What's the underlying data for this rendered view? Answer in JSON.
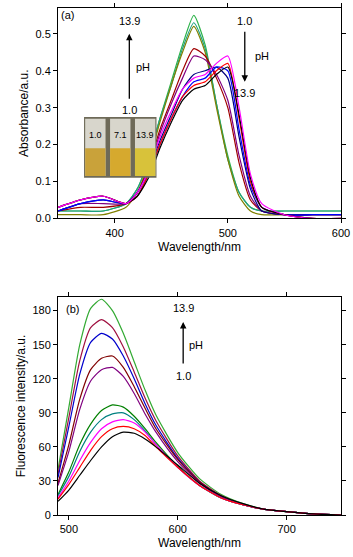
{
  "chart_data": [
    {
      "type": "line",
      "x_label": "Wavelength/nm",
      "y_label": "Absorbance/a.u.",
      "x": [
        350,
        370,
        390,
        410,
        420,
        430,
        440,
        450,
        460,
        470,
        480,
        490,
        500,
        510,
        520,
        530,
        550,
        575,
        600
      ],
      "xlim": [
        350,
        600
      ],
      "xticks": [
        400,
        500,
        600
      ],
      "ylim": [
        0,
        0.57
      ],
      "yticks": [
        {
          "value": 0,
          "label": "0.0"
        },
        0.1,
        0.2,
        0.3,
        0.4,
        0.5
      ],
      "inset_labels": [
        "1.0",
        "7.1",
        "13.9"
      ],
      "annotations": [
        {
          "text": "(a)",
          "x": 358,
          "y": 0.55
        },
        {
          "text": "13.9",
          "x": 413,
          "y": 0.535
        },
        {
          "text": "pH",
          "x": 425,
          "y": 0.41
        },
        {
          "text": "1.0",
          "x": 413,
          "y": 0.295
        },
        {
          "text": "1.0",
          "x": 515,
          "y": 0.535
        },
        {
          "text": "pH",
          "x": 530,
          "y": 0.44
        },
        {
          "text": "13.9",
          "x": 515,
          "y": 0.34
        }
      ],
      "series": [
        {
          "color": "#2db34a",
          "values": [
            0.02,
            0.02,
            0.02,
            0.04,
            0.08,
            0.16,
            0.27,
            0.37,
            0.47,
            0.55,
            0.47,
            0.31,
            0.17,
            0.07,
            0.03,
            0.02,
            0.02,
            0.02,
            0.02
          ]
        },
        {
          "color": "#20a080",
          "values": [
            0.02,
            0.02,
            0.02,
            0.04,
            0.08,
            0.16,
            0.27,
            0.36,
            0.46,
            0.53,
            0.46,
            0.31,
            0.16,
            0.07,
            0.03,
            0.02,
            0.02,
            0.02,
            0.02
          ]
        },
        {
          "color": "#808000",
          "values": [
            0.01,
            0.01,
            0.01,
            0.03,
            0.07,
            0.15,
            0.26,
            0.36,
            0.45,
            0.52,
            0.45,
            0.3,
            0.16,
            0.06,
            0.02,
            0.01,
            0.01,
            0.01,
            0.01
          ]
        },
        {
          "color": "#a00000",
          "values": [
            0.02,
            0.03,
            0.03,
            0.04,
            0.07,
            0.14,
            0.24,
            0.32,
            0.4,
            0.46,
            0.44,
            0.38,
            0.3,
            0.15,
            0.05,
            0.02,
            0.01,
            0.01,
            0.01
          ]
        },
        {
          "color": "#800080",
          "values": [
            0.02,
            0.04,
            0.04,
            0.04,
            0.07,
            0.13,
            0.23,
            0.31,
            0.38,
            0.44,
            0.43,
            0.39,
            0.32,
            0.17,
            0.06,
            0.02,
            0.01,
            0.01,
            0.01
          ]
        },
        {
          "color": "#000080",
          "values": [
            0.02,
            0.04,
            0.05,
            0.04,
            0.07,
            0.13,
            0.21,
            0.28,
            0.35,
            0.39,
            0.4,
            0.41,
            0.38,
            0.22,
            0.08,
            0.02,
            0.01,
            0.01,
            0.01
          ]
        },
        {
          "color": "#0000ff",
          "values": [
            0.02,
            0.04,
            0.05,
            0.04,
            0.06,
            0.12,
            0.2,
            0.27,
            0.33,
            0.37,
            0.38,
            0.41,
            0.4,
            0.24,
            0.09,
            0.03,
            0.01,
            0.01,
            0.01
          ]
        },
        {
          "color": "#ff0000",
          "values": [
            0.03,
            0.05,
            0.06,
            0.04,
            0.06,
            0.12,
            0.2,
            0.27,
            0.33,
            0.36,
            0.37,
            0.4,
            0.42,
            0.27,
            0.1,
            0.03,
            0.01,
            0.0,
            0.0
          ]
        },
        {
          "color": "#000000",
          "values": [
            0.03,
            0.05,
            0.06,
            0.04,
            0.06,
            0.11,
            0.19,
            0.26,
            0.32,
            0.35,
            0.36,
            0.39,
            0.41,
            0.28,
            0.11,
            0.03,
            0.01,
            0.0,
            0.0
          ]
        },
        {
          "color": "#ff00ff",
          "values": [
            0.03,
            0.05,
            0.06,
            0.04,
            0.07,
            0.13,
            0.22,
            0.29,
            0.35,
            0.38,
            0.39,
            0.42,
            0.44,
            0.3,
            0.12,
            0.04,
            0.01,
            0.0,
            0.0
          ]
        }
      ]
    },
    {
      "type": "line",
      "x_label": "Wavelength/nm",
      "y_label": "Fluorescence intensity/a.u.",
      "x": [
        490,
        500,
        510,
        520,
        530,
        540,
        550,
        560,
        570,
        580,
        600,
        620,
        640,
        660,
        680,
        700,
        725,
        750
      ],
      "xlim": [
        490,
        750
      ],
      "xticks": [
        500,
        600,
        700
      ],
      "ylim": [
        0,
        192
      ],
      "yticks": [
        0,
        30,
        60,
        90,
        120,
        150,
        180
      ],
      "annotations": [
        {
          "text": "(b)",
          "x": 503,
          "y": 181
        },
        {
          "text": "13.9",
          "x": 605,
          "y": 182
        },
        {
          "text": "pH",
          "x": 617,
          "y": 150
        },
        {
          "text": "1.0",
          "x": 605,
          "y": 122
        }
      ],
      "series": [
        {
          "color": "#33aa33",
          "values": [
            40,
            95,
            150,
            182,
            190,
            180,
            160,
            135,
            110,
            88,
            55,
            32,
            18,
            10,
            5,
            3,
            1,
            0
          ]
        },
        {
          "color": "#a01040",
          "values": [
            36,
            86,
            136,
            165,
            172,
            165,
            148,
            126,
            103,
            83,
            52,
            30,
            17,
            9,
            5,
            3,
            1,
            0
          ]
        },
        {
          "color": "#0000cc",
          "values": [
            33,
            78,
            124,
            152,
            160,
            155,
            140,
            120,
            98,
            79,
            50,
            29,
            16,
            9,
            5,
            3,
            1,
            0
          ]
        },
        {
          "color": "#800000",
          "values": [
            28,
            62,
            102,
            128,
            138,
            140,
            130,
            113,
            94,
            76,
            49,
            29,
            16,
            9,
            5,
            3,
            1,
            0
          ]
        },
        {
          "color": "#800080",
          "values": [
            26,
            56,
            93,
            118,
            128,
            130,
            122,
            107,
            89,
            73,
            47,
            28,
            16,
            9,
            5,
            3,
            1,
            0
          ]
        },
        {
          "color": "#008000",
          "values": [
            18,
            38,
            62,
            80,
            92,
            97,
            95,
            87,
            76,
            64,
            43,
            26,
            15,
            9,
            5,
            3,
            1,
            0
          ]
        },
        {
          "color": "#008080",
          "values": [
            17,
            34,
            56,
            73,
            84,
            89,
            90,
            84,
            74,
            62,
            42,
            26,
            15,
            9,
            5,
            3,
            1,
            0
          ]
        },
        {
          "color": "#ff00ff",
          "values": [
            15,
            30,
            48,
            64,
            76,
            82,
            84,
            81,
            73,
            62,
            42,
            26,
            15,
            9,
            5,
            3,
            1,
            0
          ]
        },
        {
          "color": "#ff0000",
          "values": [
            14,
            27,
            42,
            57,
            69,
            76,
            78,
            76,
            70,
            60,
            42,
            26,
            15,
            9,
            5,
            3,
            1,
            0
          ]
        },
        {
          "color": "#000000",
          "values": [
            12,
            22,
            35,
            48,
            60,
            69,
            73,
            72,
            67,
            60,
            44,
            28,
            17,
            10,
            5,
            3,
            1,
            0
          ]
        }
      ]
    }
  ]
}
